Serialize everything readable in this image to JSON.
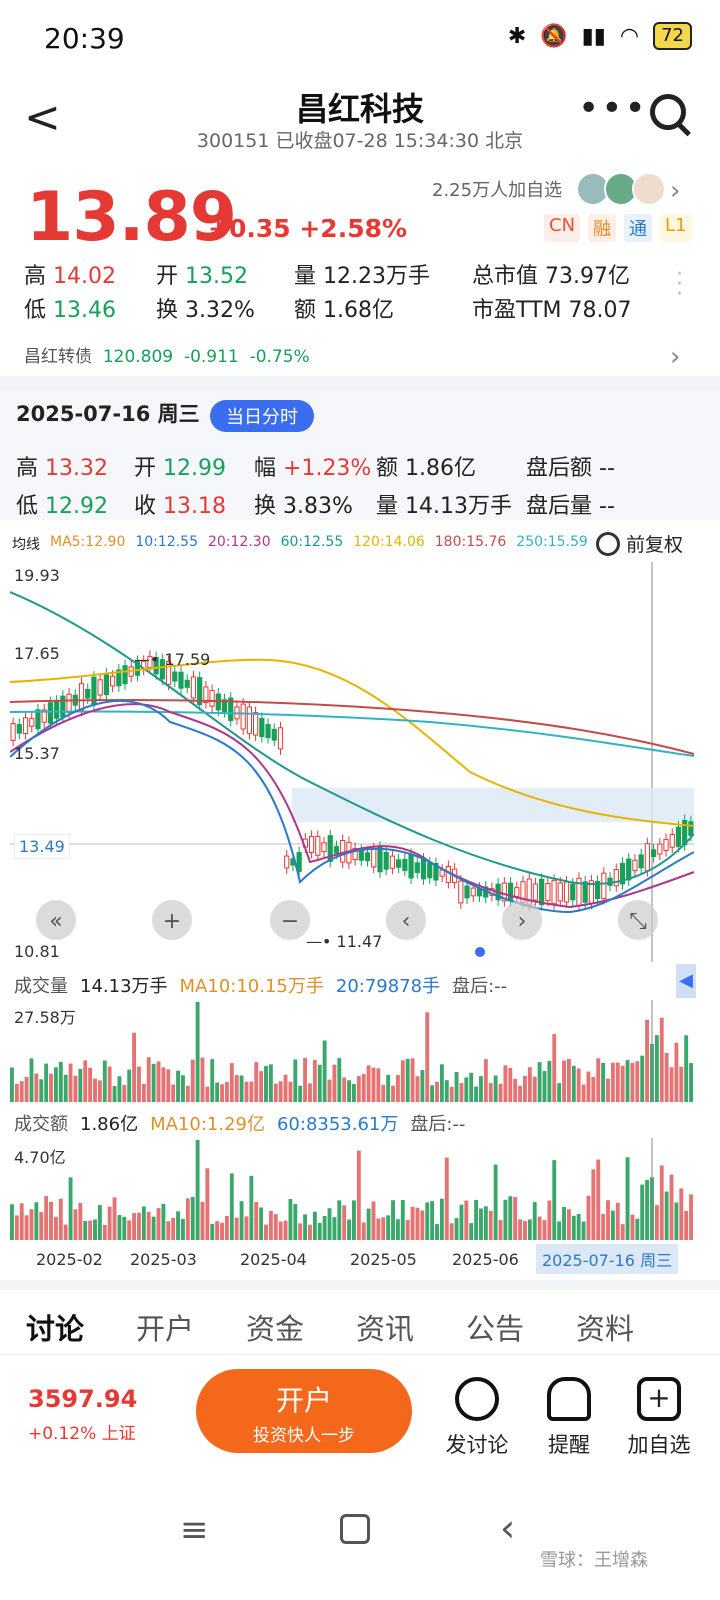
{
  "status": {
    "time": "20:39",
    "battery": "72"
  },
  "nav": {
    "back": "<",
    "title": "昌红科技",
    "subtitle": "300151 已收盘07-28 15:34:30 北京",
    "more": "•••"
  },
  "quote": {
    "price": "13.89",
    "change": "+0.35",
    "change_pct": "+2.58%",
    "followers": "2.25万人加自选",
    "badges": [
      "CN",
      "融",
      "通",
      "L1"
    ],
    "high_label": "高",
    "high": "14.02",
    "open_label": "开",
    "open": "13.52",
    "vol_label": "量",
    "vol": "12.23万手",
    "mcap_label": "总市值",
    "mcap": "73.97亿",
    "low_label": "低",
    "low": "13.46",
    "turn_label": "换",
    "turn": "3.32%",
    "amt_label": "额",
    "amt": "1.68亿",
    "pe_label": "市盈TTM",
    "pe": "78.07"
  },
  "bond": {
    "name": "昌红转债",
    "price": "120.809",
    "change": "-0.911",
    "pct": "-0.75%"
  },
  "day": {
    "date": "2025-07-16 周三",
    "pill": "当日分时",
    "high_label": "高",
    "high": "13.32",
    "open_label": "开",
    "open": "12.99",
    "amp_label": "幅",
    "amp": "+1.23%",
    "amt_label": "额",
    "amt": "1.86亿",
    "ah_amt_label": "盘后额",
    "ah_amt": "--",
    "low_label": "低",
    "low": "12.92",
    "close_label": "收",
    "close": "13.18",
    "turn_label": "换",
    "turn": "3.83%",
    "vol_label": "量",
    "vol": "14.13万手",
    "ah_vol_label": "盘后量",
    "ah_vol": "--"
  },
  "ma": {
    "title": "均线",
    "items": [
      {
        "text": "MA5:12.90",
        "color": "#e0902a"
      },
      {
        "text": "10:12.55",
        "color": "#2b79c9"
      },
      {
        "text": "20:12.30",
        "color": "#b0368a"
      },
      {
        "text": "60:12.55",
        "color": "#1b9a8a"
      },
      {
        "text": "120:14.06",
        "color": "#e6b400"
      },
      {
        "text": "180:15.76",
        "color": "#c24b4b"
      },
      {
        "text": "250:15.59",
        "color": "#31b3c4"
      }
    ],
    "adjust": "前复权"
  },
  "chart": {
    "y_labels": [
      "19.93",
      "17.65",
      "15.37",
      "13.49",
      "10.81"
    ],
    "hi_mark": "17.59",
    "lo_mark": "11.47",
    "x_labels": [
      "2025-02",
      "2025-03",
      "2025-04",
      "2025-05",
      "2025-06"
    ],
    "cursor_date": "2025-07-16 周三"
  },
  "volume": {
    "label": "成交量",
    "value": "14.13万手",
    "ma10": "MA10:10.15万手",
    "ma20": "20:79878手",
    "after": "盘后:--",
    "max": "27.58万"
  },
  "amount": {
    "label": "成交额",
    "value": "1.86亿",
    "ma10": "MA10:1.29亿",
    "ma60": "60:8353.61万",
    "after": "盘后:--",
    "max": "4.70亿"
  },
  "tabs": [
    "讨论",
    "开户",
    "资金",
    "资讯",
    "公告",
    "资料"
  ],
  "bottom": {
    "index_value": "3597.94",
    "index_change": "+0.12% 上证",
    "open_title": "开户",
    "open_sub": "投资快人一步",
    "actions": [
      "发讨论",
      "提醒",
      "加自选"
    ]
  },
  "watermark": "雪球：王增森",
  "chart_data": {
    "type": "candlestick",
    "y_axis_labels": [
      19.93,
      17.65,
      15.37,
      13.49,
      10.81
    ],
    "period_high": 17.59,
    "period_low": 11.47,
    "reference_price": 13.49,
    "x_ticks": [
      "2025-02",
      "2025-03",
      "2025-04",
      "2025-05",
      "2025-06"
    ],
    "moving_averages": {
      "MA5": 12.9,
      "MA10": 12.55,
      "MA20": 12.3,
      "MA60": 12.55,
      "MA120": 14.06,
      "MA180": 15.76,
      "MA250": 15.59
    }
  }
}
